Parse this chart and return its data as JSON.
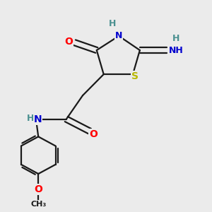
{
  "bg_color": "#ebebeb",
  "bond_color": "#1a1a1a",
  "colors": {
    "O": "#ff0000",
    "N": "#0000cd",
    "S": "#b8b800",
    "C": "#1a1a1a",
    "H": "#4a9090"
  },
  "lw": 1.6
}
